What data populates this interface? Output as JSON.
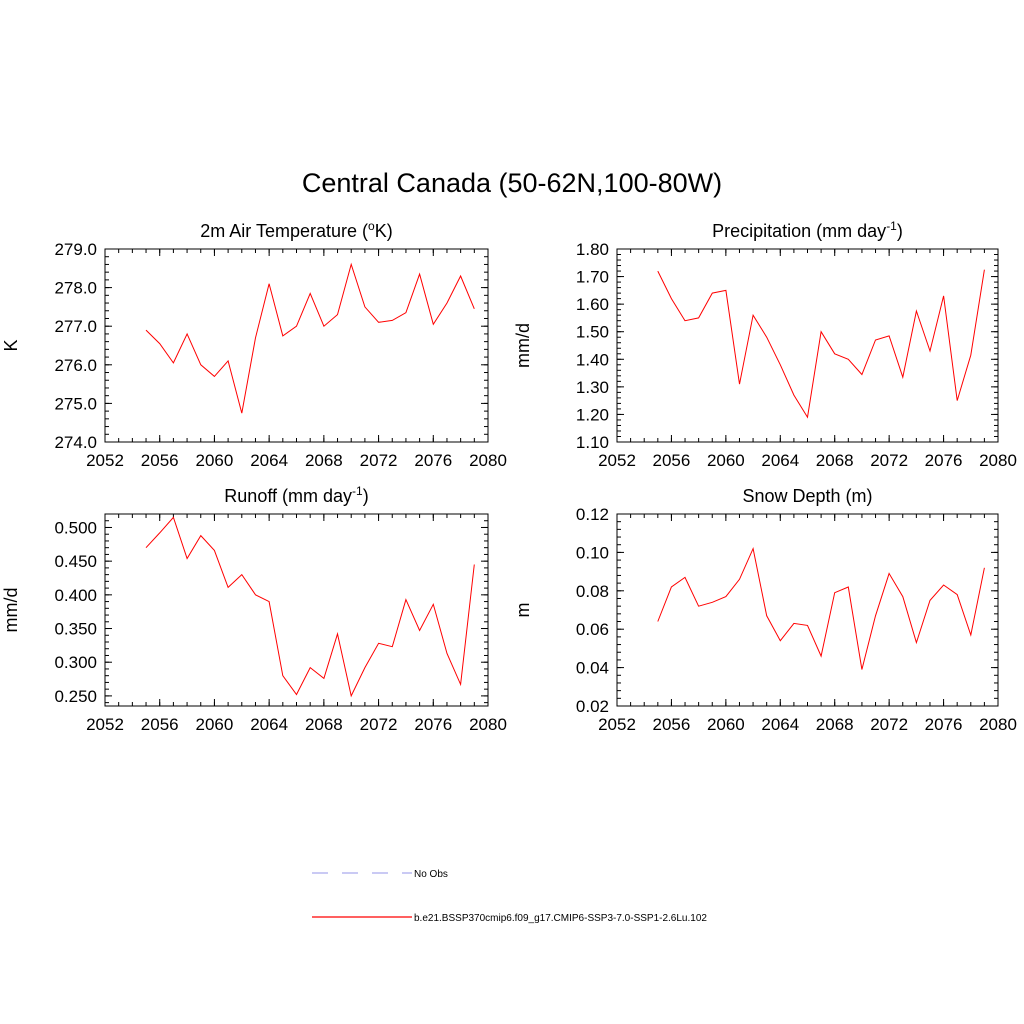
{
  "main_title": "Central Canada (50-62N,100-80W)",
  "legend": [
    {
      "label": "No Obs",
      "color": "#aaaaee",
      "dash": true
    },
    {
      "label": "b.e21.BSSP370cmip6.f09_g17.CMIP6-SSP3-7.0-SSP1-2.6Lu.102",
      "color": "#ff0000",
      "dash": false
    }
  ],
  "chart_data": [
    {
      "type": "line",
      "title": "2m Air Temperature (",
      "title_sup": "o",
      "title_after": "K)",
      "title_sup2": "",
      "title_end": "",
      "ylabel": "K",
      "xlim": [
        2052,
        2080
      ],
      "ylim": [
        274.0,
        279.0
      ],
      "yticks": [
        "274.0",
        "275.0",
        "276.0",
        "277.0",
        "278.0",
        "279.0"
      ],
      "ytick_values": [
        274,
        275,
        276,
        277,
        278,
        279
      ],
      "xticks": [
        "2052",
        "2056",
        "2060",
        "2064",
        "2068",
        "2072",
        "2076",
        "2080"
      ],
      "xtick_values": [
        2052,
        2056,
        2060,
        2064,
        2068,
        2072,
        2076,
        2080
      ],
      "x": [
        2055,
        2056,
        2057,
        2058,
        2059,
        2060,
        2061,
        2062,
        2063,
        2064,
        2065,
        2066,
        2067,
        2068,
        2069,
        2070,
        2071,
        2072,
        2073,
        2074,
        2075,
        2076,
        2077,
        2078,
        2079
      ],
      "series": [
        {
          "color": "#ff0000",
          "values": [
            276.9,
            276.55,
            276.05,
            276.8,
            276.0,
            275.7,
            276.1,
            274.75,
            276.7,
            278.1,
            276.75,
            277.0,
            277.85,
            277.0,
            277.3,
            278.6,
            277.5,
            277.1,
            277.15,
            277.35,
            278.35,
            277.05,
            277.6,
            278.3,
            277.45
          ]
        }
      ]
    },
    {
      "type": "line",
      "title": "Precipitation (mm day",
      "title_sup": "-1",
      "title_after": ")",
      "ylabel": "mm/d",
      "xlim": [
        2052,
        2080
      ],
      "ylim": [
        1.1,
        1.8
      ],
      "yticks": [
        "1.10",
        "1.20",
        "1.30",
        "1.40",
        "1.50",
        "1.60",
        "1.70",
        "1.80"
      ],
      "ytick_values": [
        1.1,
        1.2,
        1.3,
        1.4,
        1.5,
        1.6,
        1.7,
        1.8
      ],
      "xticks": [
        "2052",
        "2056",
        "2060",
        "2064",
        "2068",
        "2072",
        "2076",
        "2080"
      ],
      "xtick_values": [
        2052,
        2056,
        2060,
        2064,
        2068,
        2072,
        2076,
        2080
      ],
      "x": [
        2055,
        2056,
        2057,
        2058,
        2059,
        2060,
        2061,
        2062,
        2063,
        2064,
        2065,
        2066,
        2067,
        2068,
        2069,
        2070,
        2071,
        2072,
        2073,
        2074,
        2075,
        2076,
        2077,
        2078,
        2079
      ],
      "series": [
        {
          "color": "#ff0000",
          "values": [
            1.72,
            1.62,
            1.54,
            1.55,
            1.64,
            1.65,
            1.31,
            1.56,
            1.48,
            1.38,
            1.27,
            1.19,
            1.5,
            1.42,
            1.4,
            1.345,
            1.47,
            1.485,
            1.335,
            1.575,
            1.43,
            1.63,
            1.25,
            1.415,
            1.725
          ]
        }
      ]
    },
    {
      "type": "line",
      "title": "Runoff (mm day",
      "title_sup": "-1",
      "title_after": ")",
      "ylabel": "mm/d",
      "xlim": [
        2052,
        2080
      ],
      "ylim": [
        0.235,
        0.52
      ],
      "yticks": [
        "0.250",
        "0.300",
        "0.350",
        "0.400",
        "0.450",
        "0.500"
      ],
      "ytick_values": [
        0.25,
        0.3,
        0.35,
        0.4,
        0.45,
        0.5
      ],
      "xticks": [
        "2052",
        "2056",
        "2060",
        "2064",
        "2068",
        "2072",
        "2076",
        "2080"
      ],
      "xtick_values": [
        2052,
        2056,
        2060,
        2064,
        2068,
        2072,
        2076,
        2080
      ],
      "x": [
        2055,
        2056,
        2057,
        2058,
        2059,
        2060,
        2061,
        2062,
        2063,
        2064,
        2065,
        2066,
        2067,
        2068,
        2069,
        2070,
        2071,
        2072,
        2073,
        2074,
        2075,
        2076,
        2077,
        2078,
        2079
      ],
      "series": [
        {
          "color": "#ff0000",
          "values": [
            0.47,
            0.492,
            0.515,
            0.454,
            0.488,
            0.466,
            0.411,
            0.43,
            0.4,
            0.39,
            0.28,
            0.252,
            0.292,
            0.276,
            0.342,
            0.25,
            0.292,
            0.328,
            0.323,
            0.393,
            0.347,
            0.386,
            0.313,
            0.267,
            0.445
          ]
        }
      ]
    },
    {
      "type": "line",
      "title": "Snow Depth (m)",
      "title_sup": "",
      "title_after": "",
      "ylabel": "m",
      "xlim": [
        2052,
        2080
      ],
      "ylim": [
        0.02,
        0.12
      ],
      "yticks": [
        "0.02",
        "0.04",
        "0.06",
        "0.08",
        "0.10",
        "0.12"
      ],
      "ytick_values": [
        0.02,
        0.04,
        0.06,
        0.08,
        0.1,
        0.12
      ],
      "xticks": [
        "2052",
        "2056",
        "2060",
        "2064",
        "2068",
        "2072",
        "2076",
        "2080"
      ],
      "xtick_values": [
        2052,
        2056,
        2060,
        2064,
        2068,
        2072,
        2076,
        2080
      ],
      "x": [
        2055,
        2056,
        2057,
        2058,
        2059,
        2060,
        2061,
        2062,
        2063,
        2064,
        2065,
        2066,
        2067,
        2068,
        2069,
        2070,
        2071,
        2072,
        2073,
        2074,
        2075,
        2076,
        2077,
        2078,
        2079
      ],
      "series": [
        {
          "color": "#ff0000",
          "values": [
            0.064,
            0.082,
            0.087,
            0.072,
            0.074,
            0.077,
            0.086,
            0.102,
            0.067,
            0.054,
            0.063,
            0.062,
            0.046,
            0.079,
            0.082,
            0.039,
            0.067,
            0.089,
            0.077,
            0.053,
            0.075,
            0.083,
            0.078,
            0.057,
            0.092
          ]
        }
      ]
    }
  ]
}
